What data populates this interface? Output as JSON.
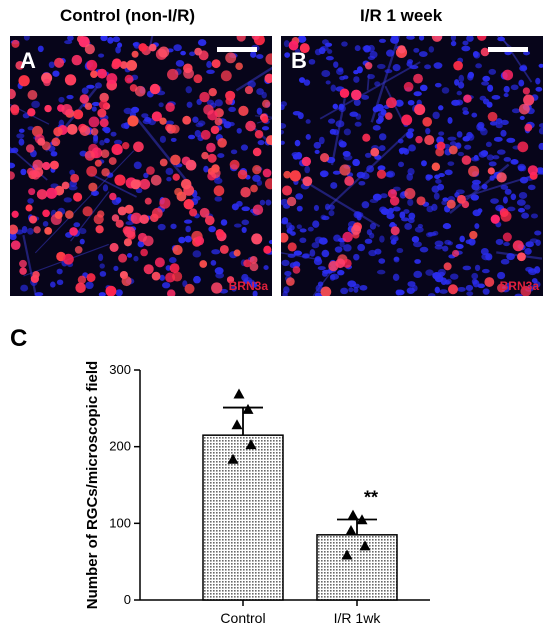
{
  "panels": [
    {
      "letter": "A",
      "title": "Control (non-I/R)",
      "stain": "BRN3a"
    },
    {
      "letter": "B",
      "title": "I/R 1 week",
      "stain": "BRN3a"
    }
  ],
  "panel_c_letter": "C",
  "colors": {
    "nuclei_red": "#ff2a55",
    "nuclei_blue": "#2b2df0",
    "background": "#07051a"
  },
  "chart_data": {
    "type": "bar",
    "title": "",
    "categories": [
      "Control",
      "I/R 1wk"
    ],
    "values": [
      215,
      85
    ],
    "errors": [
      36,
      20
    ],
    "points": [
      [
        268,
        248,
        228,
        202,
        183
      ],
      [
        110,
        104,
        90,
        70,
        58
      ]
    ],
    "annotations": [
      {
        "category": "I/R 1wk",
        "text": "**"
      }
    ],
    "xlabel": "",
    "ylabel": "Number of RGCs/microscopic field",
    "ylim": [
      0,
      300
    ],
    "yticks": [
      0,
      100,
      200,
      300
    ]
  }
}
